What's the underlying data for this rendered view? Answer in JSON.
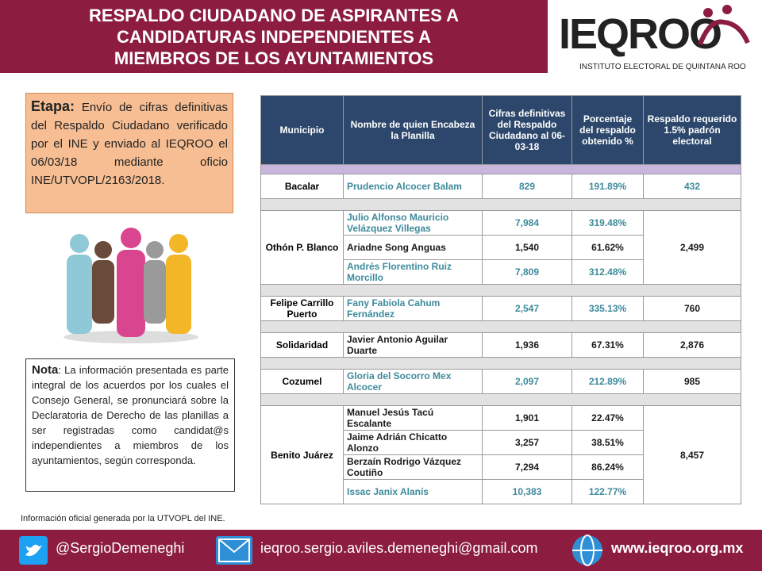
{
  "header": {
    "title": [
      "RESPALDO CIUDADANO DE ASPIRANTES A",
      "CANDIDATURAS INDEPENDIENTES A",
      "MIEMBROS DE LOS AYUNTAMIENTOS"
    ],
    "logo": "IEQROO",
    "logo_subtitle": "INSTITUTO ELECTORAL DE QUINTANA ROO"
  },
  "etapa": {
    "label": "Etapa:",
    "text": "Envío de cifras definitivas del Respaldo Ciudadano verificado por el INE y enviado al IEQROO el 06/03/18 mediante oficio INE/UTVOPL/2163/2018."
  },
  "nota": {
    "label": "Nota",
    "text": ": La información presentada es parte integral de los acuerdos por los cuales el Consejo General, se pronunciará sobre la Declaratoria de Derecho de las planillas a ser registradas como candidat@s independientes a miembros de los ayuntamientos, según corresponda."
  },
  "source": "Información oficial generada por  la UTVOPL del INE.",
  "table": {
    "headers": [
      "Municipio",
      "Nombre de quien Encabeza la Planilla",
      "Cifras definitivas del Respaldo Ciudadano al 06-03-18",
      "Porcentaje del respaldo obtenido %",
      "Respaldo requerido 1.5% padrón electoral"
    ],
    "groups": [
      {
        "municipio": "Bacalar",
        "respaldo": "432",
        "respaldo_color": "#3d8a9b",
        "candidates": [
          {
            "name": "Prudencio Alcocer Balam",
            "cifras": "829",
            "porcentaje": "191.89%",
            "color": "#3d8a9b"
          }
        ]
      },
      {
        "municipio": "Othón P. Blanco",
        "respaldo": "2,499",
        "respaldo_color": "#1a1a1a",
        "candidates": [
          {
            "name": "Julio Alfonso Mauricio Velázquez Villegas",
            "cifras": "7,984",
            "porcentaje": "319.48%",
            "color": "#3d8a9b"
          },
          {
            "name": "Ariadne Song Anguas",
            "cifras": "1,540",
            "porcentaje": "61.62%",
            "color": "#1a1a1a"
          },
          {
            "name": "Andrés Florentino Ruiz Morcillo",
            "cifras": "7,809",
            "porcentaje": "312.48%",
            "color": "#3d8a9b"
          }
        ]
      },
      {
        "municipio": "Felipe Carrillo Puerto",
        "respaldo": "760",
        "respaldo_color": "#1a1a1a",
        "candidates": [
          {
            "name": "Fany Fabiola Cahum Fernández",
            "cifras": "2,547",
            "porcentaje": "335.13%",
            "color": "#3d8a9b"
          }
        ]
      },
      {
        "municipio": "Solidaridad",
        "respaldo": "2,876",
        "respaldo_color": "#1a1a1a",
        "candidates": [
          {
            "name": "Javier Antonio Aguilar Duarte",
            "cifras": "1,936",
            "porcentaje": "67.31%",
            "color": "#1a1a1a"
          }
        ]
      },
      {
        "municipio": "Cozumel",
        "respaldo": "985",
        "respaldo_color": "#1a1a1a",
        "candidates": [
          {
            "name": "Gloria del Socorro Mex Alcocer",
            "cifras": "2,097",
            "porcentaje": "212.89%",
            "color": "#3d8a9b"
          }
        ]
      },
      {
        "municipio": "Benito Juárez",
        "respaldo": "8,457",
        "respaldo_color": "#1a1a1a",
        "candidates": [
          {
            "name": "Manuel Jesús Tacú Escalante",
            "cifras": "1,901",
            "porcentaje": "22.47%",
            "color": "#1a1a1a"
          },
          {
            "name": "Jaime Adrián Chicatto Alonzo",
            "cifras": "3,257",
            "porcentaje": "38.51%",
            "color": "#1a1a1a"
          },
          {
            "name": "Berzaín Rodrigo Vázquez Coutiño",
            "cifras": "7,294",
            "porcentaje": "86.24%",
            "color": "#1a1a1a"
          },
          {
            "name": "Issac Janix Alanís",
            "cifras": "10,383",
            "porcentaje": "122.77%",
            "color": "#3d8a9b"
          }
        ]
      }
    ]
  },
  "footer": {
    "twitter": "@SergioDemeneghi",
    "email": "ieqroo.sergio.aviles.demeneghi@gmail.com",
    "web": "www.ieqroo.org.mx"
  }
}
